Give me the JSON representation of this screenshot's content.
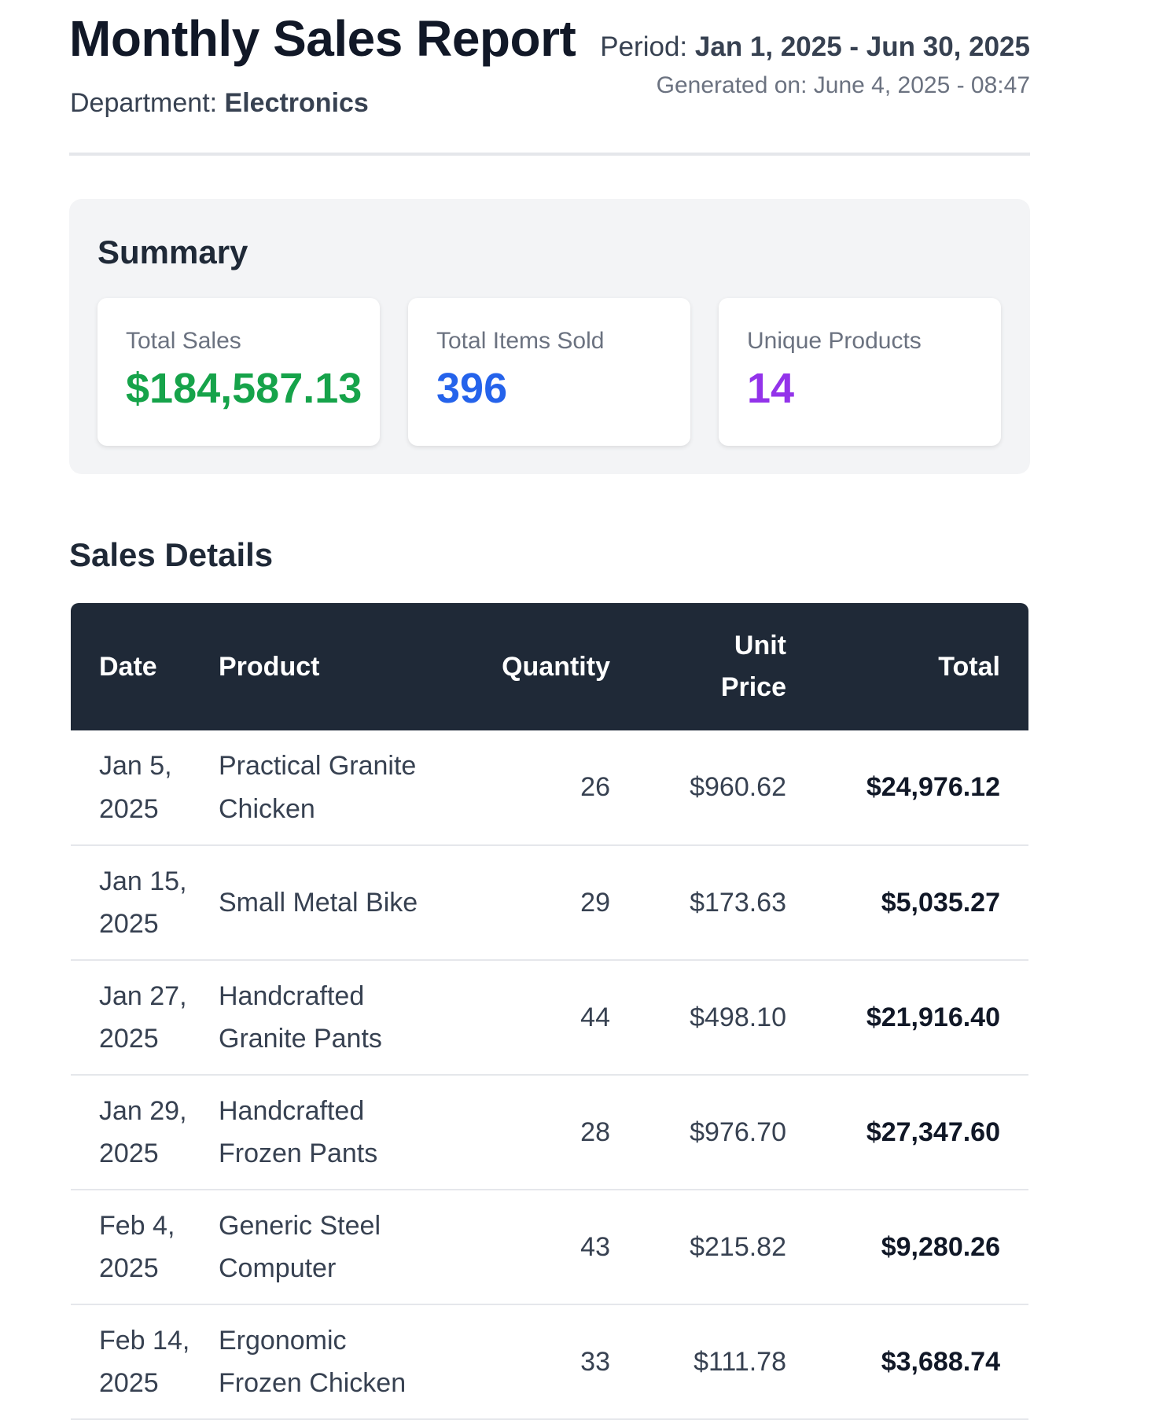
{
  "header": {
    "title": "Monthly Sales Report",
    "department_label": "Department:",
    "department_value": "Electronics",
    "period_label": "Period:",
    "period_value": "Jan 1, 2025 - Jun 30, 2025",
    "generated_on": "Generated on: June 4, 2025 - 08:47"
  },
  "summary": {
    "title": "Summary",
    "cards": [
      {
        "label": "Total Sales",
        "value": "$184,587.13",
        "color": "#16a34a"
      },
      {
        "label": "Total Items Sold",
        "value": "396",
        "color": "#2563eb"
      },
      {
        "label": "Unique Products",
        "value": "14",
        "color": "#9333ea"
      }
    ]
  },
  "details": {
    "title": "Sales Details",
    "columns": {
      "date": "Date",
      "product": "Product",
      "quantity": "Quantity",
      "unit_price": "Unit Price",
      "total": "Total"
    },
    "rows": [
      {
        "date": "Jan 5, 2025",
        "product": "Practical Granite Chicken",
        "quantity": "26",
        "unit_price": "$960.62",
        "total": "$24,976.12"
      },
      {
        "date": "Jan 15, 2025",
        "product": "Small Metal Bike",
        "quantity": "29",
        "unit_price": "$173.63",
        "total": "$5,035.27"
      },
      {
        "date": "Jan 27, 2025",
        "product": "Handcrafted Granite Pants",
        "quantity": "44",
        "unit_price": "$498.10",
        "total": "$21,916.40"
      },
      {
        "date": "Jan 29, 2025",
        "product": "Handcrafted Frozen Pants",
        "quantity": "28",
        "unit_price": "$976.70",
        "total": "$27,347.60"
      },
      {
        "date": "Feb 4, 2025",
        "product": "Generic Steel Computer",
        "quantity": "43",
        "unit_price": "$215.82",
        "total": "$9,280.26"
      },
      {
        "date": "Feb 14, 2025",
        "product": "Ergonomic Frozen Chicken",
        "quantity": "33",
        "unit_price": "$111.78",
        "total": "$3,688.74"
      }
    ]
  }
}
